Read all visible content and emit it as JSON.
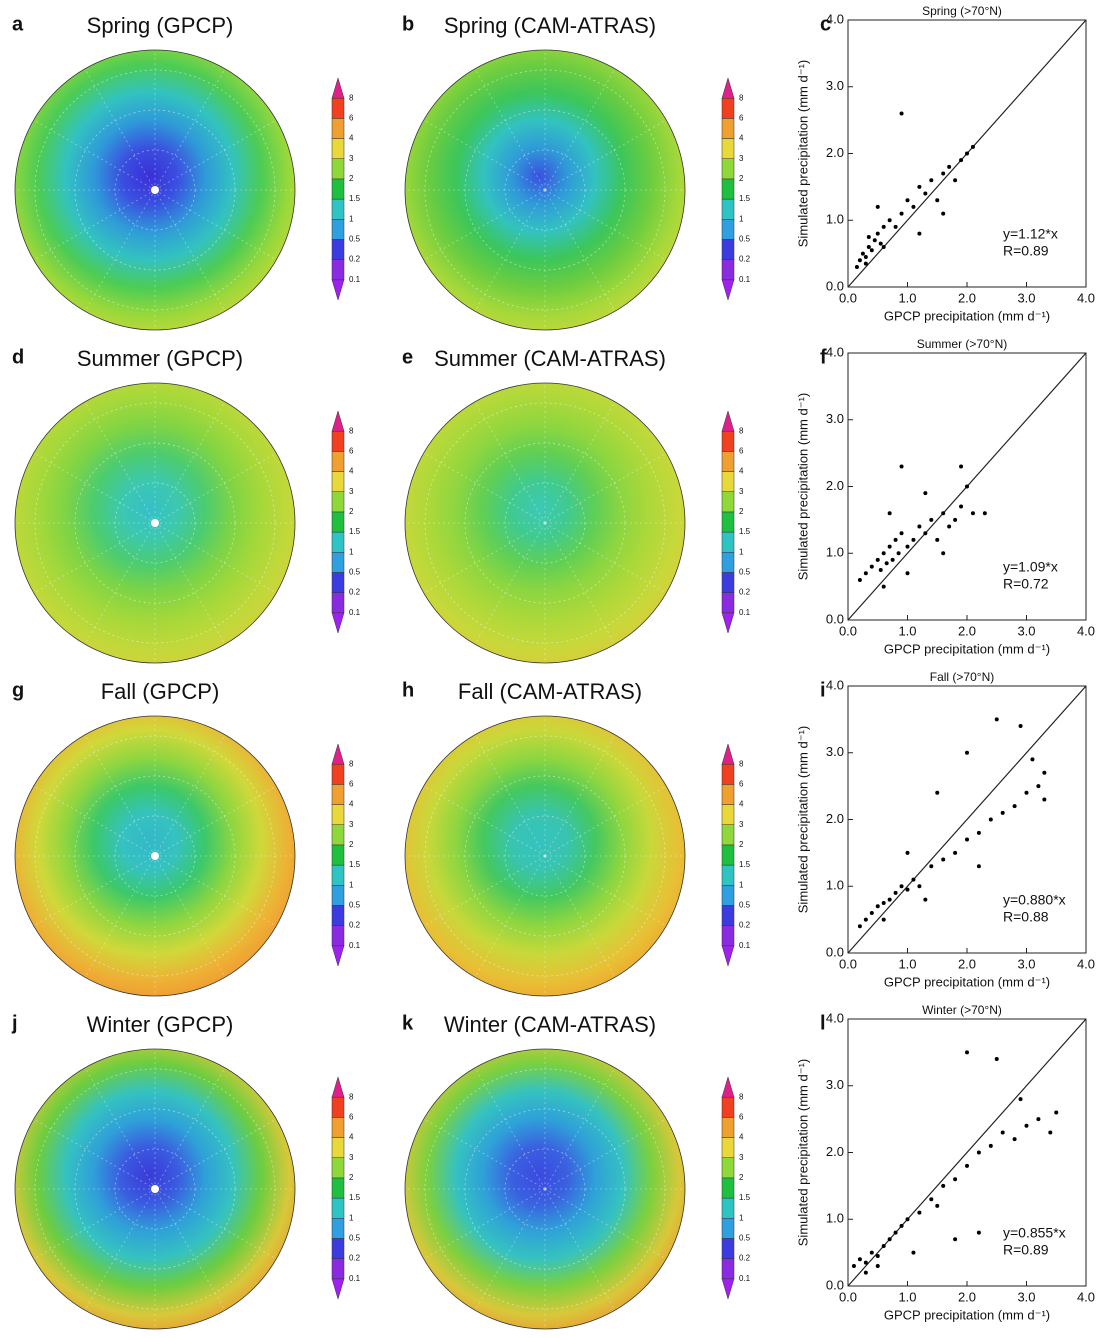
{
  "chart_data": [
    {
      "type": "map",
      "panel": "a",
      "title": "Spring (GPCP)",
      "pole_dot": true,
      "colors": [
        "#3b2fd8",
        "#3a4fe0",
        "#2f9ad8",
        "#33c2c0",
        "#4ccc55",
        "#9ad83a",
        "#cfd83a"
      ],
      "colorbar": {
        "ticks": [
          0.1,
          0.2,
          0.5,
          1,
          1.5,
          2,
          3,
          4,
          6,
          8
        ],
        "colors": [
          "#a020f0",
          "#8a2be2",
          "#3b3be0",
          "#2f9fe0",
          "#2fc4c4",
          "#1fbf3f",
          "#8fd83a",
          "#e8d83a",
          "#f0a030",
          "#f04020",
          "#e0208a"
        ]
      }
    },
    {
      "type": "map",
      "panel": "b",
      "title": "Spring (CAM-ATRAS)",
      "pole_dot": false,
      "colors": [
        "#3a50e0",
        "#2f9ad8",
        "#33c2c0",
        "#3cc65a",
        "#6ccd40",
        "#a5d83a",
        "#d0d83a"
      ],
      "colorbar": {
        "ticks": [
          0.1,
          0.2,
          0.5,
          1,
          1.5,
          2,
          3,
          4,
          6,
          8
        ],
        "colors": [
          "#a020f0",
          "#8a2be2",
          "#3b3be0",
          "#2f9fe0",
          "#2fc4c4",
          "#1fbf3f",
          "#8fd83a",
          "#e8d83a",
          "#f0a030",
          "#f04020",
          "#e0208a"
        ]
      }
    },
    {
      "type": "scatter",
      "panel": "c",
      "title": "Spring (>70°N)",
      "xlabel": "GPCP precipitation (mm d⁻¹)",
      "ylabel": "Simulated precipitation (mm d⁻¹)",
      "annotations": [
        "y=1.12*x",
        "R=0.89"
      ],
      "xlim": [
        0,
        4
      ],
      "ylim": [
        0,
        4
      ],
      "xticks": [
        {
          "value": 0,
          "label": "0.0"
        },
        {
          "value": 1,
          "label": "1.0"
        },
        {
          "value": 2,
          "label": "2.0"
        },
        {
          "value": 3,
          "label": "3.0"
        },
        {
          "value": 4,
          "label": "4.0"
        }
      ],
      "yticks": [
        {
          "value": 0,
          "label": "0.0"
        },
        {
          "value": 1,
          "label": "1.0"
        },
        {
          "value": 2,
          "label": "2.0"
        },
        {
          "value": 3,
          "label": "3.0"
        },
        {
          "value": 4,
          "label": "4.0"
        }
      ],
      "x": [
        0.15,
        0.2,
        0.25,
        0.3,
        0.35,
        0.4,
        0.45,
        0.5,
        0.55,
        0.6,
        0.7,
        0.8,
        0.9,
        1.0,
        1.1,
        1.2,
        1.3,
        1.4,
        1.5,
        1.6,
        1.7,
        1.8,
        1.9,
        2.0,
        0.9,
        1.2,
        0.5,
        1.6,
        2.1,
        0.35,
        0.3,
        0.6
      ],
      "y": [
        0.3,
        0.4,
        0.5,
        0.45,
        0.6,
        0.55,
        0.7,
        0.8,
        0.65,
        0.9,
        1.0,
        0.9,
        1.1,
        1.3,
        1.2,
        1.5,
        1.4,
        1.6,
        1.3,
        1.7,
        1.8,
        1.6,
        1.9,
        2.0,
        2.6,
        0.8,
        1.2,
        1.1,
        2.1,
        0.75,
        0.35,
        0.6
      ]
    },
    {
      "type": "map",
      "panel": "d",
      "title": "Summer (GPCP)",
      "pole_dot": true,
      "colors": [
        "#35bfc8",
        "#3cc8b0",
        "#4ccc70",
        "#7ed445",
        "#a5d83a",
        "#c2d83a",
        "#d8d03a"
      ],
      "colorbar": {
        "ticks": [
          0.1,
          0.2,
          0.5,
          1,
          1.5,
          2,
          3,
          4,
          6,
          8
        ],
        "colors": [
          "#a020f0",
          "#8a2be2",
          "#3b3be0",
          "#2f9fe0",
          "#2fc4c4",
          "#1fbf3f",
          "#8fd83a",
          "#e8d83a",
          "#f0a030",
          "#f04020",
          "#e0208a"
        ]
      }
    },
    {
      "type": "map",
      "panel": "e",
      "title": "Summer (CAM-ATRAS)",
      "pole_dot": false,
      "colors": [
        "#3cc8b8",
        "#40ca90",
        "#5fcf55",
        "#8ed640",
        "#aed83a",
        "#c8d83a",
        "#e0c83a"
      ],
      "colorbar": {
        "ticks": [
          0.1,
          0.2,
          0.5,
          1,
          1.5,
          2,
          3,
          4,
          6,
          8
        ],
        "colors": [
          "#a020f0",
          "#8a2be2",
          "#3b3be0",
          "#2f9fe0",
          "#2fc4c4",
          "#1fbf3f",
          "#8fd83a",
          "#e8d83a",
          "#f0a030",
          "#f04020",
          "#e0208a"
        ]
      }
    },
    {
      "type": "scatter",
      "panel": "f",
      "title": "Summer (>70°N)",
      "xlabel": "GPCP precipitation (mm d⁻¹)",
      "ylabel": "Simulated precipitation (mm d⁻¹)",
      "annotations": [
        "y=1.09*x",
        "R=0.72"
      ],
      "xlim": [
        0,
        4
      ],
      "ylim": [
        0,
        4
      ],
      "xticks": [
        {
          "value": 0,
          "label": "0.0"
        },
        {
          "value": 1,
          "label": "1.0"
        },
        {
          "value": 2,
          "label": "2.0"
        },
        {
          "value": 3,
          "label": "3.0"
        },
        {
          "value": 4,
          "label": "4.0"
        }
      ],
      "yticks": [
        {
          "value": 0,
          "label": "0.0"
        },
        {
          "value": 1,
          "label": "1.0"
        },
        {
          "value": 2,
          "label": "2.0"
        },
        {
          "value": 3,
          "label": "3.0"
        },
        {
          "value": 4,
          "label": "4.0"
        }
      ],
      "x": [
        0.2,
        0.3,
        0.4,
        0.5,
        0.55,
        0.6,
        0.65,
        0.7,
        0.75,
        0.8,
        0.85,
        0.9,
        1.0,
        1.1,
        1.2,
        1.3,
        1.4,
        1.5,
        1.6,
        1.7,
        1.8,
        1.9,
        2.0,
        2.1,
        2.3,
        0.9,
        1.3,
        1.6,
        0.6,
        0.7,
        1.0,
        1.9
      ],
      "y": [
        0.6,
        0.7,
        0.8,
        0.9,
        0.75,
        1.0,
        0.85,
        1.1,
        0.9,
        1.2,
        1.0,
        1.3,
        1.1,
        1.2,
        1.4,
        1.3,
        1.5,
        1.2,
        1.6,
        1.4,
        1.5,
        1.7,
        2.0,
        1.6,
        1.6,
        2.3,
        1.9,
        1.0,
        0.5,
        1.6,
        0.7,
        2.3
      ]
    },
    {
      "type": "map",
      "panel": "g",
      "title": "Fall (GPCP)",
      "pole_dot": true,
      "colors": [
        "#33b8c8",
        "#35c2c0",
        "#3cc86a",
        "#8ed640",
        "#d0d83a",
        "#eeb035",
        "#f09030"
      ],
      "colorbar": {
        "ticks": [
          0.1,
          0.2,
          0.5,
          1,
          1.5,
          2,
          3,
          4,
          6,
          8
        ],
        "colors": [
          "#a020f0",
          "#8a2be2",
          "#3b3be0",
          "#2f9fe0",
          "#2fc4c4",
          "#1fbf3f",
          "#8fd83a",
          "#e8d83a",
          "#f0a030",
          "#f04020",
          "#e0208a"
        ]
      }
    },
    {
      "type": "map",
      "panel": "h",
      "title": "Fall (CAM-ATRAS)",
      "pole_dot": false,
      "colors": [
        "#35c2c0",
        "#38c4b0",
        "#44c860",
        "#8ed640",
        "#c8d83a",
        "#e8c035",
        "#f0a030"
      ],
      "colorbar": {
        "ticks": [
          0.1,
          0.2,
          0.5,
          1,
          1.5,
          2,
          3,
          4,
          6,
          8
        ],
        "colors": [
          "#a020f0",
          "#8a2be2",
          "#3b3be0",
          "#2f9fe0",
          "#2fc4c4",
          "#1fbf3f",
          "#8fd83a",
          "#e8d83a",
          "#f0a030",
          "#f04020",
          "#e0208a"
        ]
      }
    },
    {
      "type": "scatter",
      "panel": "i",
      "title": "Fall (>70°N)",
      "xlabel": "GPCP precipitation (mm d⁻¹)",
      "ylabel": "Simulated precipitation (mm d⁻¹)",
      "annotations": [
        "y=0.880*x",
        "R=0.88"
      ],
      "xlim": [
        0,
        4
      ],
      "ylim": [
        0,
        4
      ],
      "xticks": [
        {
          "value": 0,
          "label": "0.0"
        },
        {
          "value": 1,
          "label": "1.0"
        },
        {
          "value": 2,
          "label": "2.0"
        },
        {
          "value": 3,
          "label": "3.0"
        },
        {
          "value": 4,
          "label": "4.0"
        }
      ],
      "yticks": [
        {
          "value": 0,
          "label": "0.0"
        },
        {
          "value": 1,
          "label": "1.0"
        },
        {
          "value": 2,
          "label": "2.0"
        },
        {
          "value": 3,
          "label": "3.0"
        },
        {
          "value": 4,
          "label": "4.0"
        }
      ],
      "x": [
        0.2,
        0.3,
        0.4,
        0.5,
        0.6,
        0.7,
        0.8,
        0.9,
        1.0,
        1.1,
        1.2,
        1.4,
        1.6,
        1.8,
        2.0,
        2.2,
        2.4,
        2.6,
        2.8,
        3.0,
        3.2,
        3.3,
        2.5,
        1.5,
        2.0,
        2.9,
        1.0,
        3.1,
        0.6,
        2.2,
        1.3,
        3.3
      ],
      "y": [
        0.4,
        0.5,
        0.6,
        0.7,
        0.75,
        0.8,
        0.9,
        1.0,
        0.95,
        1.1,
        1.0,
        1.3,
        1.4,
        1.5,
        1.7,
        1.8,
        2.0,
        2.1,
        2.2,
        2.4,
        2.5,
        2.7,
        3.5,
        2.4,
        3.0,
        3.4,
        1.5,
        2.9,
        0.5,
        1.3,
        0.8,
        2.3
      ]
    },
    {
      "type": "map",
      "panel": "j",
      "title": "Winter (GPCP)",
      "pole_dot": true,
      "colors": [
        "#3a3ad8",
        "#3a5ae0",
        "#2fa0d8",
        "#35c2c0",
        "#6ccd40",
        "#d8c83a",
        "#f09030"
      ],
      "colorbar": {
        "ticks": [
          0.1,
          0.2,
          0.5,
          1,
          1.5,
          2,
          3,
          4,
          6,
          8
        ],
        "colors": [
          "#a020f0",
          "#8a2be2",
          "#3b3be0",
          "#2f9fe0",
          "#2fc4c4",
          "#1fbf3f",
          "#8fd83a",
          "#e8d83a",
          "#f0a030",
          "#f04020",
          "#e0208a"
        ]
      }
    },
    {
      "type": "map",
      "panel": "k",
      "title": "Winter (CAM-ATRAS)",
      "pole_dot": false,
      "colors": [
        "#3a4ae0",
        "#3a60e0",
        "#2fa0d8",
        "#35c2c0",
        "#7ad040",
        "#d8c83a",
        "#f09030"
      ],
      "colorbar": {
        "ticks": [
          0.1,
          0.2,
          0.5,
          1,
          1.5,
          2,
          3,
          4,
          6,
          8
        ],
        "colors": [
          "#a020f0",
          "#8a2be2",
          "#3b3be0",
          "#2f9fe0",
          "#2fc4c4",
          "#1fbf3f",
          "#8fd83a",
          "#e8d83a",
          "#f0a030",
          "#f04020",
          "#e0208a"
        ]
      }
    },
    {
      "type": "scatter",
      "panel": "l",
      "title": "Winter (>70°N)",
      "xlabel": "GPCP precipitation (mm d⁻¹)",
      "ylabel": "Simulated precipitation (mm d⁻¹)",
      "annotations": [
        "y=0.855*x",
        "R=0.89"
      ],
      "xlim": [
        0,
        4
      ],
      "ylim": [
        0,
        4
      ],
      "xticks": [
        {
          "value": 0,
          "label": "0.0"
        },
        {
          "value": 1,
          "label": "1.0"
        },
        {
          "value": 2,
          "label": "2.0"
        },
        {
          "value": 3,
          "label": "3.0"
        },
        {
          "value": 4,
          "label": "4.0"
        }
      ],
      "yticks": [
        {
          "value": 0,
          "label": "0.0"
        },
        {
          "value": 1,
          "label": "1.0"
        },
        {
          "value": 2,
          "label": "2.0"
        },
        {
          "value": 3,
          "label": "3.0"
        },
        {
          "value": 4,
          "label": "4.0"
        }
      ],
      "x": [
        0.1,
        0.2,
        0.3,
        0.4,
        0.5,
        0.6,
        0.7,
        0.8,
        0.9,
        1.0,
        1.2,
        1.4,
        1.6,
        1.8,
        2.0,
        2.2,
        2.4,
        2.6,
        2.8,
        3.0,
        3.2,
        3.4,
        2.0,
        2.5,
        1.8,
        2.2,
        0.3,
        1.1,
        3.5,
        0.5,
        1.5,
        2.9
      ],
      "y": [
        0.3,
        0.4,
        0.35,
        0.5,
        0.45,
        0.6,
        0.7,
        0.8,
        0.9,
        1.0,
        1.1,
        1.3,
        1.5,
        1.6,
        1.8,
        2.0,
        2.1,
        2.3,
        2.2,
        2.4,
        2.5,
        2.3,
        3.5,
        3.4,
        0.7,
        0.8,
        0.2,
        0.5,
        2.6,
        0.3,
        1.2,
        2.8
      ]
    }
  ]
}
